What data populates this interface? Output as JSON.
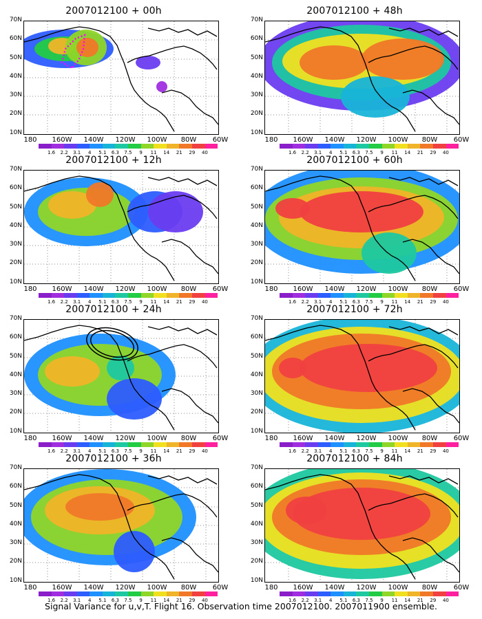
{
  "figure": {
    "caption": "Signal Variance for u,v,T. Flight 16. Observation time 2007012100. 2007011900 ensemble."
  },
  "panels": [
    {
      "title": "2007012100 + 00h"
    },
    {
      "title": "2007012100 + 48h"
    },
    {
      "title": "2007012100 + 12h"
    },
    {
      "title": "2007012100 + 60h"
    },
    {
      "title": "2007012100 + 24h"
    },
    {
      "title": "2007012100 + 72h"
    },
    {
      "title": "2007012100 + 36h"
    },
    {
      "title": "2007012100 + 84h"
    }
  ],
  "axes": {
    "lat_labels": [
      "70N",
      "60N",
      "50N",
      "40N",
      "30N",
      "20N",
      "10N"
    ],
    "lon_labels": [
      "180",
      "160W",
      "140W",
      "120W",
      "100W",
      "80W",
      "60W"
    ]
  },
  "colorbar": {
    "labels": [
      "1.6",
      "2.2",
      "3.1",
      "4",
      "5.1",
      "6.3",
      "7.5",
      "9",
      "11",
      "14",
      "21",
      "29",
      "40"
    ],
    "colors": [
      "#8a1ec8",
      "#a02ee0",
      "#6a3cf0",
      "#2d5cff",
      "#1e90ff",
      "#18b4d8",
      "#1ec8a0",
      "#22cc44",
      "#8fd628",
      "#f0e020",
      "#f0b428",
      "#f07828",
      "#f04040",
      "#ff20a0"
    ]
  }
}
